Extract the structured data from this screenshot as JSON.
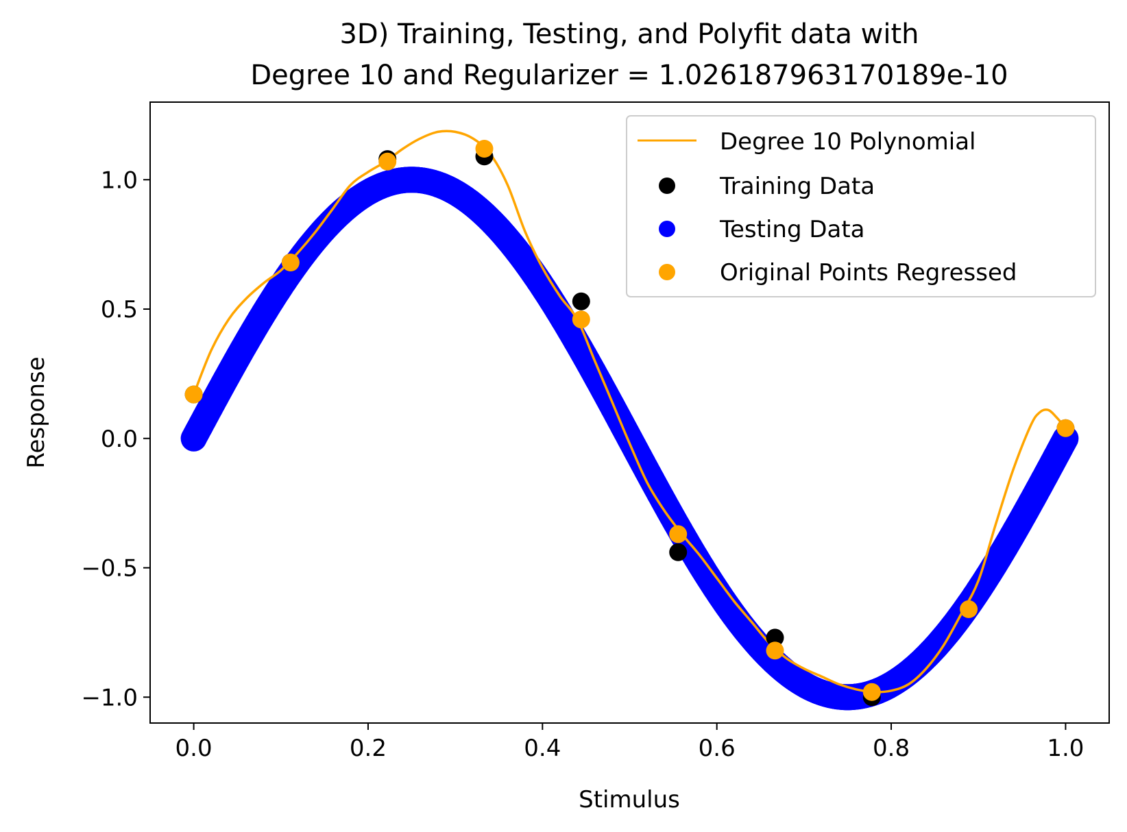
{
  "chart_data": {
    "type": "scatter",
    "title_line1": "3D) Training, Testing, and Polyfit data with",
    "title_line2": "Degree 10 and Regularizer = 1.026187963170189e-10",
    "xlabel": "Stimulus",
    "ylabel": "Response",
    "xlim": [
      -0.05,
      1.05
    ],
    "ylim": [
      -1.1,
      1.3
    ],
    "x_ticks": [
      0.0,
      0.2,
      0.4,
      0.6,
      0.8,
      1.0
    ],
    "x_tick_labels": [
      "0.0",
      "0.2",
      "0.4",
      "0.6",
      "0.8",
      "1.0"
    ],
    "y_ticks": [
      -1.0,
      -0.5,
      0.0,
      0.5,
      1.0
    ],
    "y_tick_labels": [
      "−1.0",
      "−0.5",
      "0.0",
      "0.5",
      "1.0"
    ],
    "grid": false,
    "legend_position": "top-right",
    "series": [
      {
        "name": "Degree 10 Polynomial",
        "kind": "line",
        "color": "#ffa500",
        "x": [
          0.0,
          0.02,
          0.04,
          0.06,
          0.08,
          0.1,
          0.12,
          0.14,
          0.16,
          0.18,
          0.2,
          0.22,
          0.24,
          0.26,
          0.28,
          0.3,
          0.32,
          0.34,
          0.36,
          0.38,
          0.4,
          0.42,
          0.44,
          0.46,
          0.48,
          0.5,
          0.52,
          0.54,
          0.56,
          0.58,
          0.6,
          0.62,
          0.64,
          0.66,
          0.68,
          0.7,
          0.72,
          0.74,
          0.76,
          0.78,
          0.8,
          0.82,
          0.84,
          0.86,
          0.88,
          0.9,
          0.92,
          0.94,
          0.96,
          0.97,
          0.98,
          0.99,
          1.0
        ],
        "y": [
          0.17,
          0.34,
          0.46,
          0.54,
          0.6,
          0.65,
          0.72,
          0.8,
          0.89,
          0.98,
          1.03,
          1.07,
          1.12,
          1.16,
          1.185,
          1.185,
          1.16,
          1.1,
          0.98,
          0.8,
          0.66,
          0.55,
          0.46,
          0.3,
          0.14,
          -0.02,
          -0.17,
          -0.28,
          -0.37,
          -0.45,
          -0.54,
          -0.63,
          -0.71,
          -0.79,
          -0.85,
          -0.89,
          -0.92,
          -0.95,
          -0.97,
          -0.98,
          -0.975,
          -0.95,
          -0.89,
          -0.8,
          -0.68,
          -0.55,
          -0.33,
          -0.12,
          0.05,
          0.1,
          0.11,
          0.08,
          0.04
        ]
      },
      {
        "name": "Training Data",
        "kind": "scatter",
        "color": "#000000",
        "x": [
          0.0,
          0.1111,
          0.2222,
          0.3333,
          0.4444,
          0.5556,
          0.6667,
          0.7778,
          0.8889,
          1.0
        ],
        "y": [
          0.17,
          0.68,
          1.08,
          1.09,
          0.53,
          -0.44,
          -0.77,
          -1.0,
          -0.66,
          0.04
        ]
      },
      {
        "name": "Testing Data",
        "kind": "scatter",
        "color": "#0000ff",
        "function": "sin(2*pi*x)",
        "x_range": [
          0.0,
          1.0
        ]
      },
      {
        "name": "Original Points Regressed",
        "kind": "scatter",
        "color": "#ffa500",
        "x": [
          0.0,
          0.1111,
          0.2222,
          0.3333,
          0.4444,
          0.5556,
          0.6667,
          0.7778,
          0.8889,
          1.0
        ],
        "y": [
          0.17,
          0.68,
          1.07,
          1.12,
          0.46,
          -0.37,
          -0.82,
          -0.98,
          -0.66,
          0.04
        ]
      }
    ]
  }
}
